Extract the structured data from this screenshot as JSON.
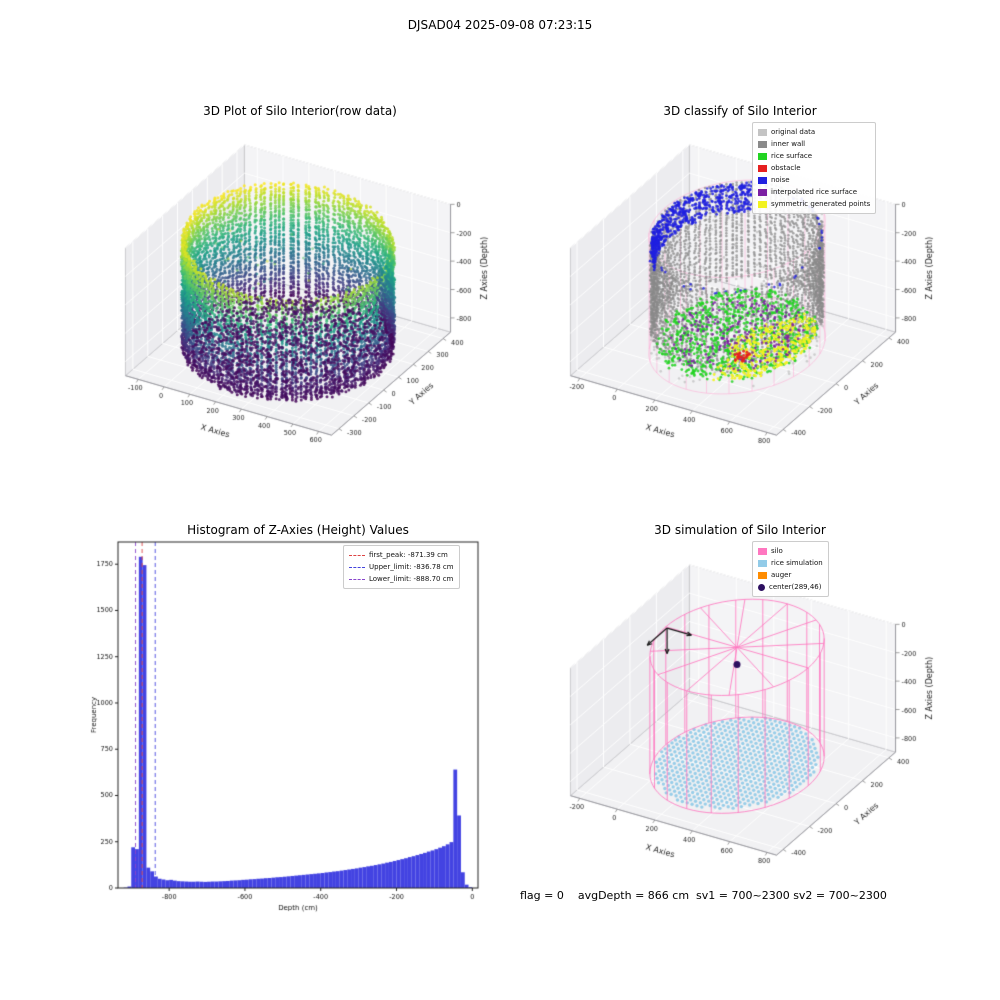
{
  "figure": {
    "title": "DJSAD04 2025-09-08 07:23:15",
    "caption": "flag = 0    avgDepth = 866 cm  sv1 = 700~2300 sv2 = 700~2300"
  },
  "chart_data": [
    {
      "id": "raw3d",
      "type": "scatter",
      "projection": "3d",
      "title": "3D Plot of Silo Interior(row data)",
      "xlabel": "X Axies",
      "ylabel": "Y Axies",
      "zlabel": "Z Axies (Depth)",
      "xticks": [
        -100,
        0,
        100,
        200,
        300,
        400,
        500,
        600
      ],
      "yticks": [
        -300,
        -200,
        -100,
        0,
        100,
        200,
        300,
        400
      ],
      "zticks": [
        0,
        -200,
        -400,
        -600,
        -800
      ],
      "xlim": [
        -150,
        650
      ],
      "ylim": [
        -350,
        450
      ],
      "zlim": [
        -900,
        0
      ],
      "colormap": "viridis",
      "cylinder": {
        "center_x": 250,
        "center_y": 50,
        "radius": 350,
        "top_z": -60,
        "bottom_z": -870
      }
    },
    {
      "id": "classify3d",
      "type": "scatter",
      "projection": "3d",
      "title": "3D classify of Silo Interior",
      "xlabel": "X Axies",
      "ylabel": "Y Axies",
      "zlabel": "Z Axies (Depth)",
      "xticks": [
        -200,
        0,
        200,
        400,
        600,
        800
      ],
      "yticks": [
        -400,
        -200,
        0,
        200,
        400
      ],
      "zticks": [
        0,
        -200,
        -400,
        -600,
        -800
      ],
      "xlim": [
        -250,
        850
      ],
      "ylim": [
        -450,
        450
      ],
      "zlim": [
        -900,
        0
      ],
      "cylinder": {
        "center_x": 289,
        "center_y": 46,
        "radius": 370,
        "top_z": -60,
        "bottom_z": -860,
        "color": "#ffaad4"
      },
      "legend": [
        {
          "label": "original data",
          "color": "#c4c4c4"
        },
        {
          "label": "inner wall",
          "color": "#8a8a8a"
        },
        {
          "label": "rice surface",
          "color": "#22d422"
        },
        {
          "label": "obstacle",
          "color": "#e62020"
        },
        {
          "label": "noise",
          "color": "#2020e0"
        },
        {
          "label": "interpolated rice surface",
          "color": "#7b1fa2"
        },
        {
          "label": "symmetric generated points",
          "color": "#f2f220"
        }
      ]
    },
    {
      "id": "histogram",
      "type": "bar",
      "title": "Histogram of Z-Axies (Height) Values",
      "xlabel": "Depth (cm)",
      "ylabel": "Frequency",
      "bar_color": "#3333e0",
      "bin_start": -920,
      "bin_width": 10,
      "values": [
        2,
        8,
        220,
        210,
        1790,
        1745,
        110,
        90,
        62,
        50,
        46,
        42,
        44,
        40,
        37,
        36,
        35,
        34,
        34,
        35,
        34,
        33,
        34,
        35,
        35,
        36,
        37,
        38,
        40,
        41,
        42,
        44,
        45,
        47,
        48,
        50,
        51,
        53,
        54,
        56,
        58,
        59,
        61,
        63,
        65,
        67,
        69,
        71,
        73,
        75,
        77,
        79,
        81,
        84,
        86,
        89,
        91,
        94,
        97,
        100,
        103,
        106,
        110,
        113,
        117,
        120,
        124,
        128,
        132,
        137,
        141,
        146,
        151,
        156,
        161,
        167,
        172,
        178,
        184,
        190,
        197,
        203,
        210,
        218,
        226,
        236,
        248,
        640,
        392,
        85,
        18,
        4
      ],
      "xticks": [
        -800,
        -600,
        -400,
        -200,
        0
      ],
      "yticks": [
        0,
        250,
        500,
        750,
        1000,
        1250,
        1500,
        1750
      ],
      "xlim": [
        -935,
        15
      ],
      "ylim": [
        0,
        1870
      ],
      "legend": [
        {
          "label": "first_peak: -871.39 cm",
          "color": "#dd4444",
          "x": -871.39
        },
        {
          "label": "Upper_limit: -836.78 cm",
          "color": "#4444dd",
          "x": -836.78
        },
        {
          "label": "Lower_limit: -888.70 cm",
          "color": "#8844cc",
          "x": -888.7
        }
      ]
    },
    {
      "id": "sim3d",
      "type": "scatter",
      "projection": "3d",
      "title": "3D simulation of Silo Interior",
      "xlabel": "X Axies",
      "ylabel": "Y Axies",
      "zlabel": "Z Axies (Depth)",
      "xticks": [
        -200,
        0,
        200,
        400,
        600,
        800
      ],
      "yticks": [
        -400,
        -200,
        0,
        200,
        400
      ],
      "zticks": [
        0,
        -200,
        -400,
        -600,
        -800
      ],
      "xlim": [
        -250,
        850
      ],
      "ylim": [
        -450,
        450
      ],
      "zlim": [
        -900,
        0
      ],
      "cylinder": {
        "center_x": 289,
        "center_y": 46,
        "radius": 380,
        "top_z": -50,
        "bottom_z": -880
      },
      "rice_z": -866,
      "center_marker": {
        "x": 289,
        "y": 46,
        "z": -170
      },
      "legend": [
        {
          "label": "silo",
          "color": "#ff77c0"
        },
        {
          "label": "rice simulation",
          "color": "#92cbe8"
        },
        {
          "label": "auger",
          "color": "#ff8c00"
        },
        {
          "label": "center(289,46)",
          "color": "#2d1060"
        }
      ]
    }
  ]
}
